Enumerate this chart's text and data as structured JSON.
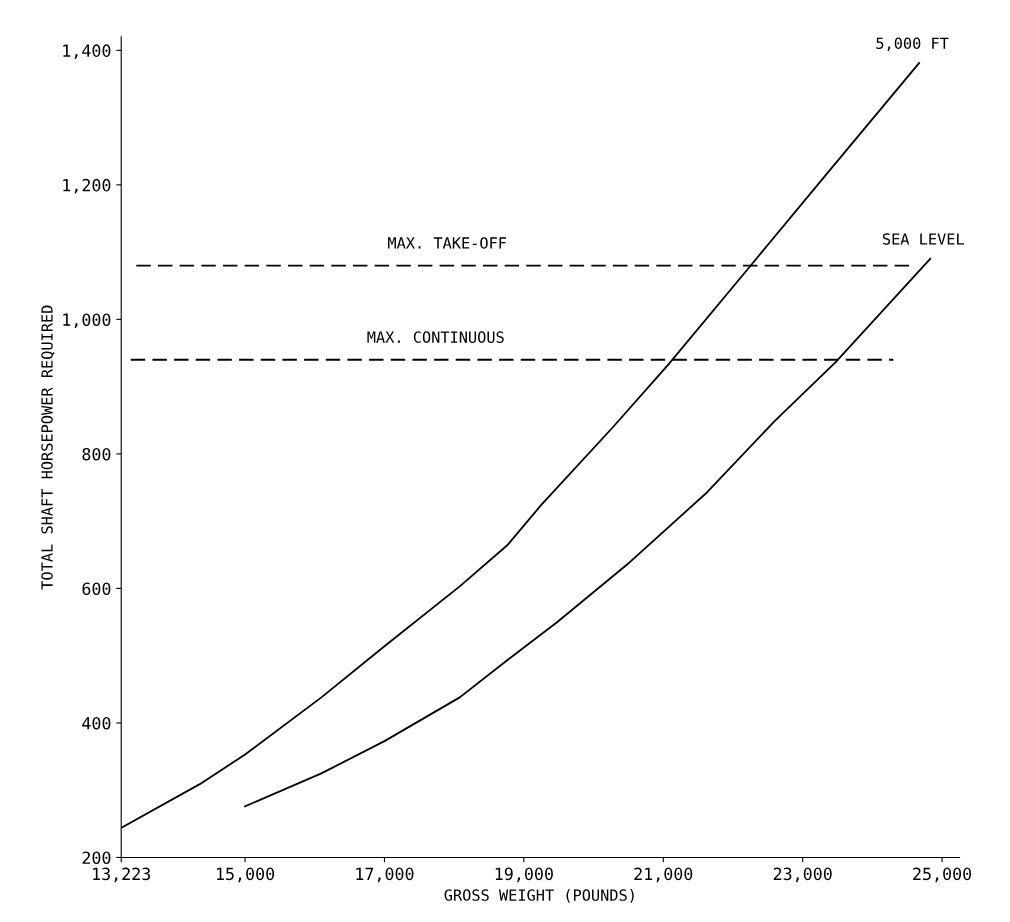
{
  "chart_data": {
    "type": "line",
    "xlabel": "GROSS WEIGHT (POUNDS)",
    "ylabel": "TOTAL SHAFT HORSEPOWER REQUIRED",
    "xlim": [
      13223,
      25250
    ],
    "ylim": [
      200,
      1420
    ],
    "xticks": [
      {
        "value": 13223,
        "label": "13,223"
      },
      {
        "value": 15000,
        "label": "15,000"
      },
      {
        "value": 17000,
        "label": "17,000"
      },
      {
        "value": 19000,
        "label": "19,000"
      },
      {
        "value": 21000,
        "label": "21,000"
      },
      {
        "value": 23000,
        "label": "23,000"
      },
      {
        "value": 25000,
        "label": "25,000"
      }
    ],
    "yticks": [
      {
        "value": 200,
        "label": "200"
      },
      {
        "value": 400,
        "label": "400"
      },
      {
        "value": 600,
        "label": "600"
      },
      {
        "value": 800,
        "label": "800"
      },
      {
        "value": 1000,
        "label": "1,000"
      },
      {
        "value": 1200,
        "label": "1,200"
      },
      {
        "value": 1400,
        "label": "1,400"
      }
    ],
    "grid": false,
    "legend": false,
    "marker": "none",
    "series": [
      {
        "name": "5,000 FT",
        "color": "#000000",
        "line_style": "solid",
        "x": [
          13223,
          14350,
          15000,
          16095,
          17000,
          18080,
          18770,
          19240,
          20280,
          21075,
          22270,
          23390,
          24670
        ],
        "values": [
          244,
          309,
          353,
          438,
          514,
          603,
          665,
          723,
          840,
          933,
          1082,
          1222,
          1381
        ]
      },
      {
        "name": "SEA LEVEL",
        "color": "#000000",
        "line_style": "solid",
        "x": [
          15000,
          16095,
          17000,
          18080,
          18770,
          19480,
          20520,
          21630,
          22590,
          23470,
          24830
        ],
        "values": [
          276,
          325,
          373,
          438,
          494,
          550,
          639,
          743,
          848,
          936,
          1090
        ]
      },
      {
        "name": "MAX. TAKE-OFF",
        "color": "#000000",
        "line_style": "dashed",
        "x": [
          13440,
          24590
        ],
        "values": [
          1080,
          1080
        ]
      },
      {
        "name": "MAX. CONTINUOUS",
        "color": "#000000",
        "line_style": "dashed",
        "x": [
          13360,
          24300
        ],
        "values": [
          940,
          940
        ]
      }
    ]
  }
}
